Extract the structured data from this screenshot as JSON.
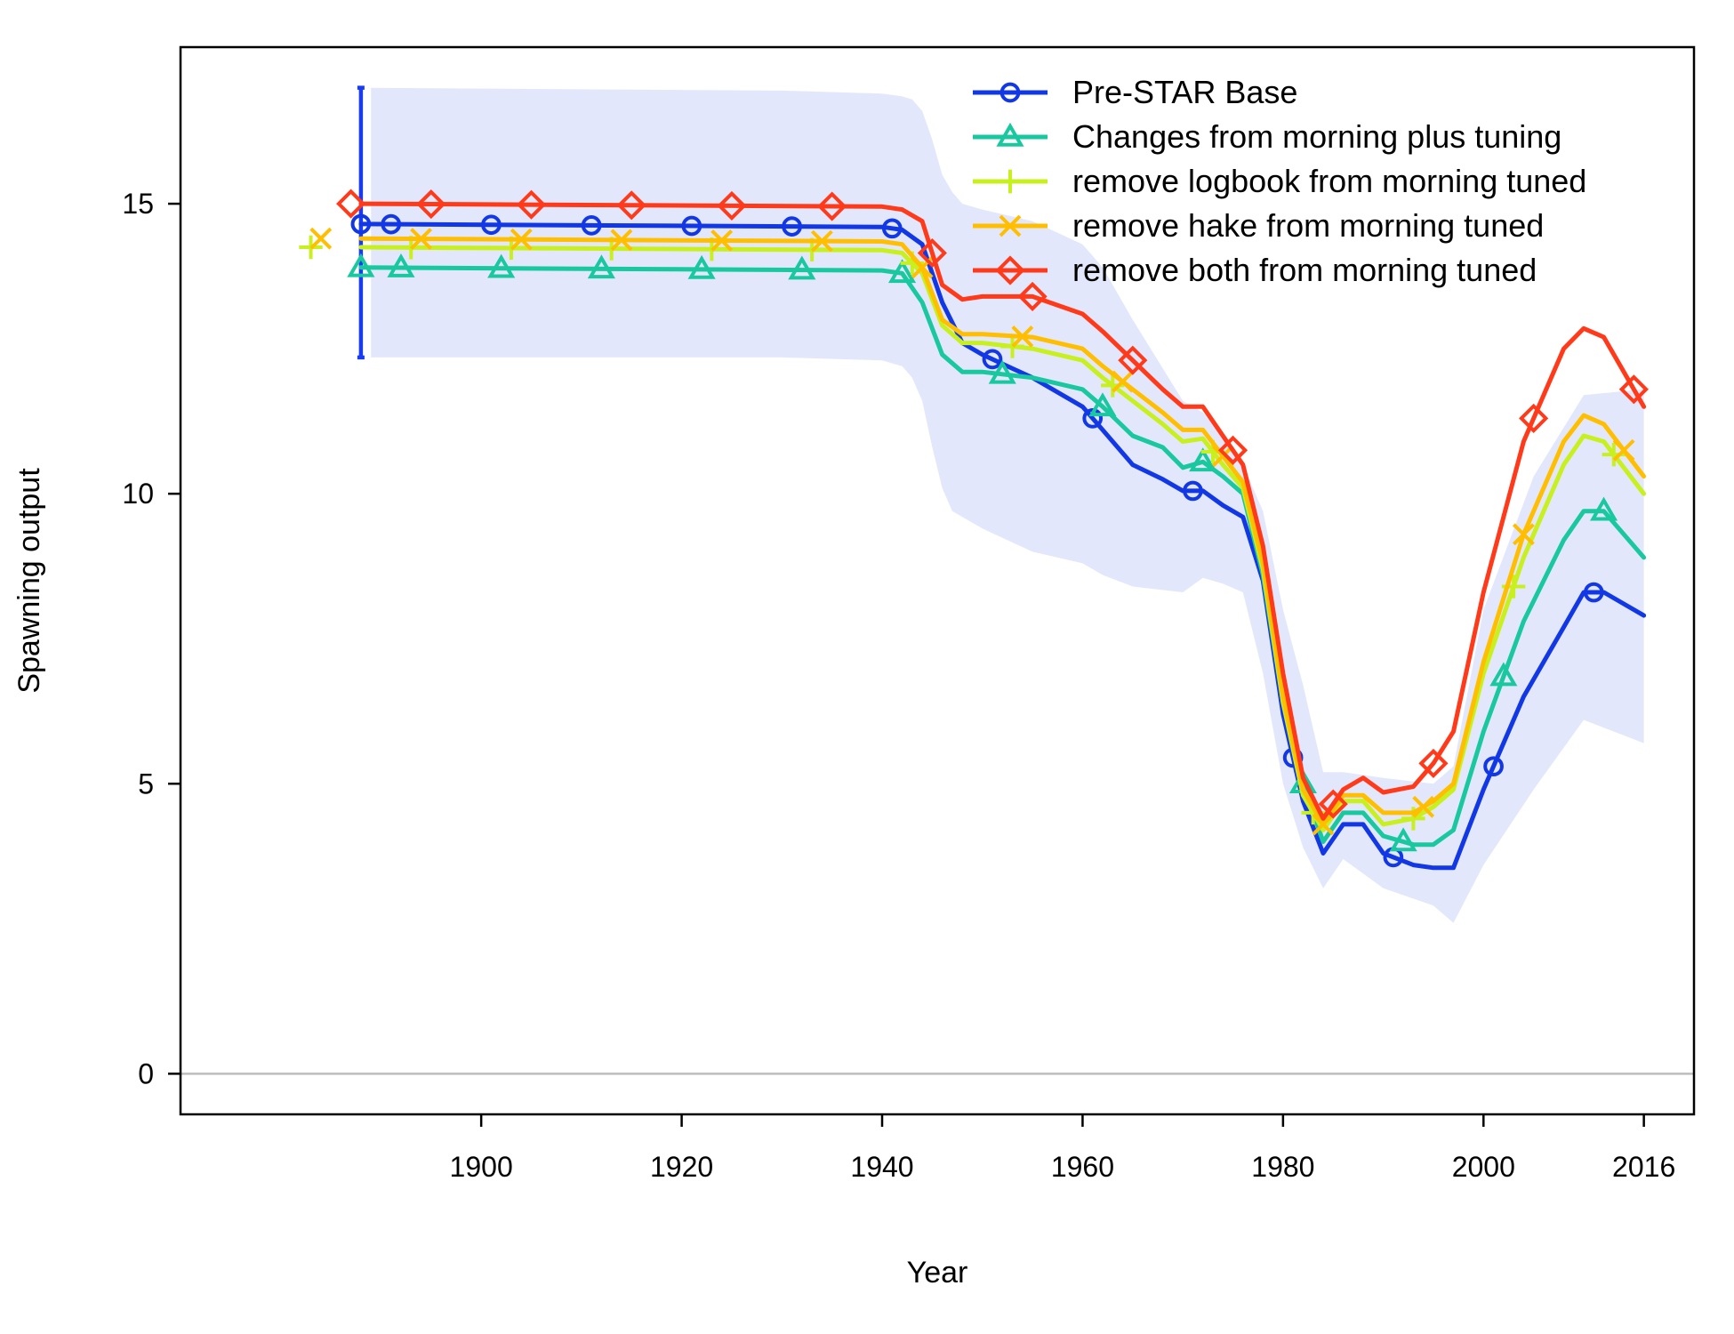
{
  "chart_data": {
    "type": "line",
    "title": "",
    "xlabel": "Year",
    "ylabel": "Spawning output",
    "xlim": [
      1870,
      2021
    ],
    "ylim": [
      -0.7,
      17.7
    ],
    "x_ticks": [
      1900,
      1920,
      1940,
      1960,
      1980,
      2000,
      2016
    ],
    "y_ticks": [
      0,
      5,
      10,
      15
    ],
    "reference_line": 0,
    "legend_position": "top-right",
    "initial_interval": {
      "x": 1888,
      "low": 12.35,
      "high": 17.0,
      "color": "#1a3cf0"
    },
    "confidence_band": {
      "color": "#e3e7fb",
      "x": [
        1889,
        1930,
        1940,
        1942,
        1943,
        1944,
        1945,
        1946,
        1947,
        1948,
        1950,
        1955,
        1960,
        1962,
        1965,
        1970,
        1972,
        1974,
        1976,
        1978,
        1980,
        1982,
        1984,
        1986,
        1990,
        1995,
        1997,
        2000,
        2005,
        2010,
        2016
      ],
      "upper": [
        17.0,
        16.95,
        16.9,
        16.85,
        16.8,
        16.6,
        16.1,
        15.5,
        15.2,
        15.0,
        14.9,
        14.7,
        14.3,
        13.9,
        13.0,
        11.6,
        11.4,
        11.0,
        10.5,
        9.7,
        8.0,
        6.7,
        5.2,
        5.2,
        5.1,
        5.0,
        5.3,
        8.0,
        10.3,
        11.7,
        11.8
      ],
      "lower": [
        12.35,
        12.35,
        12.3,
        12.2,
        12.0,
        11.6,
        10.8,
        10.1,
        9.7,
        9.6,
        9.4,
        9.0,
        8.8,
        8.6,
        8.4,
        8.3,
        8.55,
        8.45,
        8.3,
        6.9,
        5.0,
        3.9,
        3.2,
        3.7,
        3.2,
        2.9,
        2.6,
        3.6,
        4.9,
        6.1,
        5.7
      ]
    },
    "series": [
      {
        "name": "Pre-STAR Base",
        "color": "#1238e6",
        "marker": "circle",
        "x": [
          1888,
          1940,
          1942,
          1944,
          1946,
          1948,
          1950,
          1955,
          1960,
          1962,
          1965,
          1968,
          1970,
          1972,
          1974,
          1976,
          1978,
          1980,
          1982,
          1984,
          1986,
          1988,
          1990,
          1993,
          1995,
          1997,
          2000,
          2004,
          2008,
          2010,
          2012,
          2016
        ],
        "y": [
          14.65,
          14.6,
          14.55,
          14.3,
          13.3,
          12.6,
          12.4,
          12.0,
          11.5,
          11.1,
          10.5,
          10.25,
          10.05,
          10.05,
          9.8,
          9.6,
          8.5,
          6.2,
          4.7,
          3.8,
          4.3,
          4.3,
          3.8,
          3.6,
          3.55,
          3.55,
          4.9,
          6.5,
          7.7,
          8.3,
          8.3,
          7.9
        ],
        "marker_x": [
          1888,
          1891,
          1901,
          1911,
          1921,
          1931,
          1941,
          1951,
          1961,
          1971,
          1981,
          1991,
          2001,
          2011
        ]
      },
      {
        "name": "Changes from morning plus tuning",
        "color": "#1ac8a0",
        "marker": "triangle",
        "x": [
          1888,
          1940,
          1942,
          1944,
          1946,
          1948,
          1950,
          1955,
          1960,
          1962,
          1965,
          1968,
          1970,
          1972,
          1974,
          1976,
          1978,
          1980,
          1982,
          1984,
          1986,
          1988,
          1990,
          1993,
          1995,
          1997,
          2000,
          2004,
          2008,
          2010,
          2012,
          2016
        ],
        "y": [
          13.9,
          13.85,
          13.8,
          13.3,
          12.4,
          12.1,
          12.1,
          12.0,
          11.8,
          11.5,
          11.0,
          10.8,
          10.45,
          10.55,
          10.3,
          10.0,
          8.6,
          6.4,
          5.0,
          4.0,
          4.5,
          4.5,
          4.1,
          3.95,
          3.95,
          4.2,
          5.9,
          7.8,
          9.2,
          9.7,
          9.7,
          8.9
        ],
        "marker_x": [
          1888,
          1892,
          1902,
          1912,
          1922,
          1932,
          1942,
          1952,
          1962,
          1972,
          1982,
          1992,
          2002,
          2012
        ]
      },
      {
        "name": "remove logbook from morning tuned",
        "color": "#c8f01e",
        "marker": "plus",
        "x": [
          1888,
          1940,
          1942,
          1944,
          1946,
          1948,
          1950,
          1955,
          1960,
          1962,
          1965,
          1968,
          1970,
          1972,
          1974,
          1976,
          1978,
          1980,
          1982,
          1984,
          1986,
          1988,
          1990,
          1993,
          1995,
          1997,
          2000,
          2004,
          2008,
          2010,
          2012,
          2016
        ],
        "y": [
          14.25,
          14.2,
          14.15,
          13.8,
          12.9,
          12.6,
          12.6,
          12.5,
          12.3,
          12.0,
          11.6,
          11.2,
          10.9,
          10.95,
          10.5,
          10.1,
          8.7,
          6.4,
          4.8,
          4.2,
          4.7,
          4.7,
          4.3,
          4.4,
          4.6,
          4.9,
          6.9,
          8.9,
          10.5,
          11.0,
          10.9,
          10.0
        ],
        "marker_x": [
          1883,
          1893,
          1903,
          1913,
          1923,
          1933,
          1943,
          1953,
          1963,
          1973,
          1983,
          1993,
          2003,
          2013
        ]
      },
      {
        "name": "remove hake from morning tuned",
        "color": "#ffbf00",
        "marker": "cross",
        "x": [
          1888,
          1940,
          1942,
          1944,
          1946,
          1948,
          1950,
          1955,
          1960,
          1962,
          1965,
          1968,
          1970,
          1972,
          1974,
          1976,
          1978,
          1980,
          1982,
          1984,
          1986,
          1988,
          1990,
          1993,
          1995,
          1997,
          2000,
          2004,
          2008,
          2010,
          2012,
          2016
        ],
        "y": [
          14.4,
          14.35,
          14.3,
          13.9,
          13.0,
          12.75,
          12.75,
          12.7,
          12.5,
          12.2,
          11.8,
          11.4,
          11.1,
          11.1,
          10.65,
          10.2,
          8.8,
          6.5,
          4.9,
          4.3,
          4.8,
          4.8,
          4.5,
          4.5,
          4.7,
          5.0,
          7.1,
          9.3,
          10.9,
          11.35,
          11.2,
          10.3
        ],
        "marker_x": [
          1884,
          1894,
          1904,
          1914,
          1924,
          1934,
          1944,
          1954,
          1964,
          1974,
          1984,
          1994,
          2004,
          2014
        ]
      },
      {
        "name": "remove both from morning tuned",
        "color": "#ff3a1a",
        "marker": "diamond",
        "x": [
          1888,
          1940,
          1942,
          1944,
          1946,
          1948,
          1950,
          1955,
          1960,
          1962,
          1965,
          1968,
          1970,
          1972,
          1974,
          1976,
          1978,
          1980,
          1982,
          1984,
          1986,
          1988,
          1990,
          1993,
          1995,
          1997,
          2000,
          2004,
          2008,
          2010,
          2012,
          2016
        ],
        "y": [
          15.0,
          14.95,
          14.9,
          14.7,
          13.6,
          13.35,
          13.4,
          13.4,
          13.1,
          12.8,
          12.3,
          11.8,
          11.5,
          11.5,
          11.0,
          10.5,
          9.1,
          6.9,
          5.1,
          4.4,
          4.9,
          5.1,
          4.85,
          4.95,
          5.35,
          5.9,
          8.3,
          10.9,
          12.5,
          12.85,
          12.7,
          11.5
        ],
        "marker_x": [
          1887,
          1895,
          1905,
          1915,
          1925,
          1935,
          1945,
          1955,
          1965,
          1975,
          1985,
          1995,
          2005,
          2015
        ]
      }
    ]
  }
}
